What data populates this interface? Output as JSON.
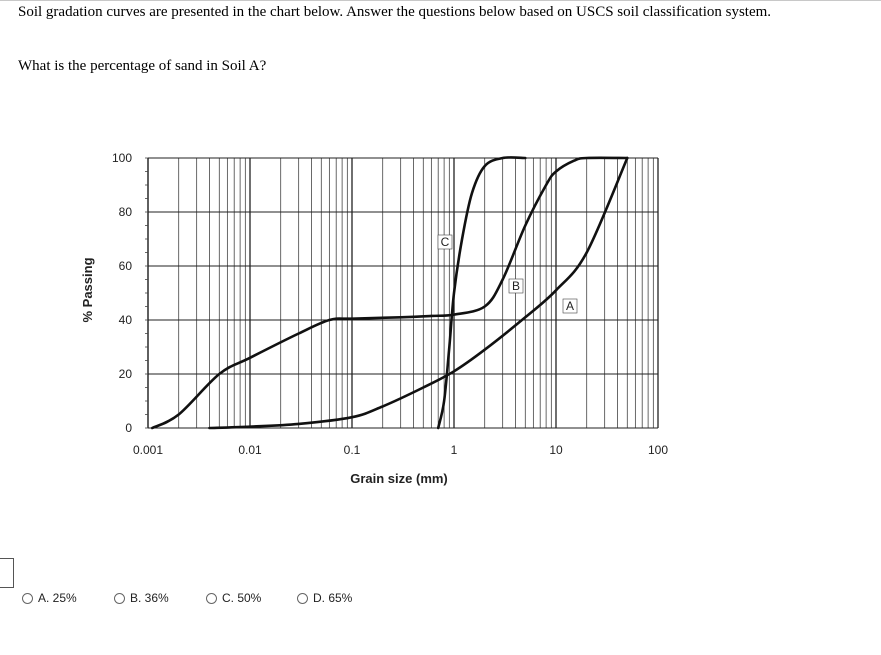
{
  "question": {
    "intro": "Soil gradation curves are presented in the chart below.  Answer the questions below based on USCS soil classification system.",
    "prompt": "What is the percentage of sand in Soil A?"
  },
  "options": [
    {
      "letter": "A",
      "label": "A. 25%"
    },
    {
      "letter": "B",
      "label": "B. 36%"
    },
    {
      "letter": "C",
      "label": "C. 50%"
    },
    {
      "letter": "D",
      "label": "D. 65%"
    }
  ],
  "chart_data": {
    "type": "line",
    "title": "",
    "xlabel": "Grain size (mm)",
    "ylabel": "% Passing",
    "x_scale": "log",
    "xlim": [
      0.001,
      100
    ],
    "ylim": [
      0,
      100
    ],
    "x_ticks": [
      "0.001",
      "0.01",
      "0.1",
      "1",
      "10",
      "100"
    ],
    "y_ticks": [
      "0",
      "20",
      "40",
      "60",
      "80",
      "100"
    ],
    "grid": true,
    "series": [
      {
        "name": "A",
        "x": [
          0.004,
          0.01,
          0.03,
          0.1,
          0.2,
          0.5,
          1,
          2,
          5,
          10,
          20,
          50
        ],
        "y": [
          0,
          0.5,
          1.5,
          4,
          8,
          15,
          21,
          29,
          41,
          51,
          65,
          100
        ]
      },
      {
        "name": "B",
        "x": [
          0.0011,
          0.002,
          0.005,
          0.01,
          0.03,
          0.06,
          0.1,
          0.3,
          0.6,
          1,
          2,
          3,
          5,
          8,
          10,
          15,
          20,
          50
        ],
        "y": [
          0,
          5,
          20,
          26,
          35,
          40,
          40.5,
          41,
          41.5,
          42,
          45,
          55,
          75,
          90,
          95,
          99,
          100,
          100
        ]
      },
      {
        "name": "C",
        "x": [
          0.7,
          0.8,
          0.9,
          1,
          1.2,
          1.5,
          2,
          3,
          5
        ],
        "y": [
          0,
          10,
          30,
          50,
          70,
          87,
          97,
          100,
          100
        ]
      }
    ]
  }
}
